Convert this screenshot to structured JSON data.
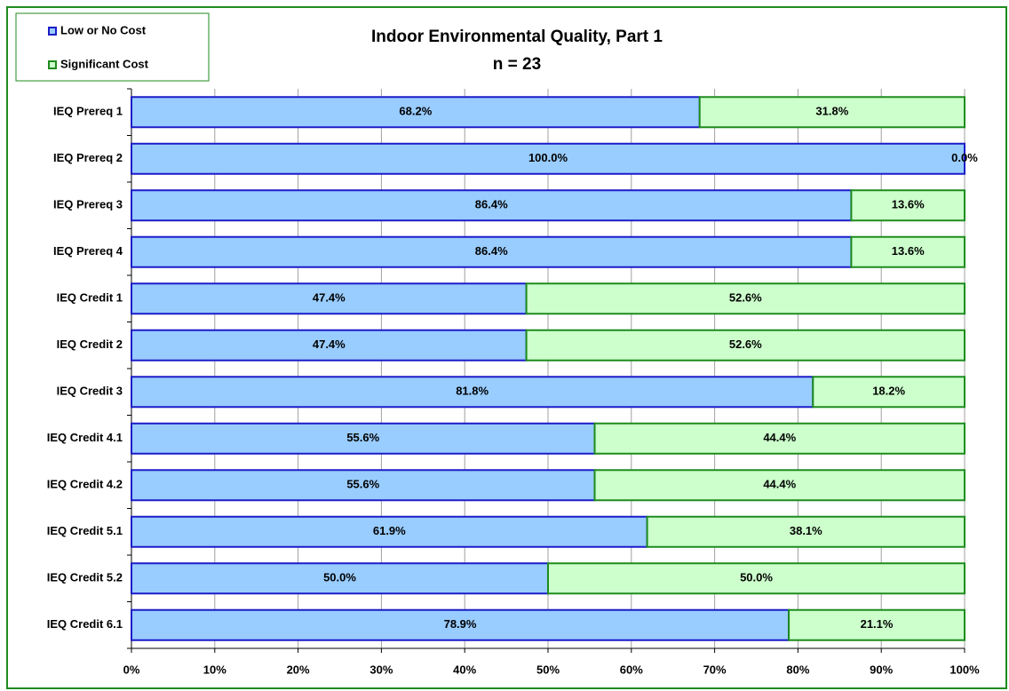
{
  "chart_data": {
    "type": "stacked_barh",
    "title": "Indoor Environmental Quality, Part 1",
    "subtitle": "n = 23",
    "categories": [
      "IEQ Prereq 1",
      "IEQ Prereq 2",
      "IEQ Prereq 3",
      "IEQ Prereq 4",
      "IEQ Credit 1",
      "IEQ Credit 2",
      "IEQ Credit 3",
      "IEQ Credit 4.1",
      "IEQ Credit 4.2",
      "IEQ Credit 5.1",
      "IEQ Credit 5.2",
      "IEQ Credit 6.1"
    ],
    "series": [
      {
        "name": "Low or No Cost",
        "color": "#99ccff",
        "edge_color": "#1c1cc8",
        "values": [
          68.2,
          100.0,
          86.4,
          86.4,
          47.4,
          47.4,
          81.8,
          55.6,
          55.6,
          61.9,
          50.0,
          78.9
        ],
        "value_labels": [
          "68.2%",
          "100.0%",
          "86.4%",
          "86.4%",
          "47.4%",
          "47.4%",
          "81.8%",
          "55.6%",
          "55.6%",
          "61.9%",
          "50.0%",
          "78.9%"
        ]
      },
      {
        "name": "Significant Cost",
        "color": "#ccffcc",
        "edge_color": "#1e8c1e",
        "values": [
          31.8,
          0.0,
          13.6,
          13.6,
          52.6,
          52.6,
          18.2,
          44.4,
          44.4,
          38.1,
          50.0,
          21.1
        ],
        "value_labels": [
          "31.8%",
          "0.0%",
          "13.6%",
          "13.6%",
          "52.6%",
          "52.6%",
          "18.2%",
          "44.4%",
          "44.4%",
          "38.1%",
          "50.0%",
          "21.1%"
        ]
      }
    ],
    "xlim": [
      0,
      100
    ],
    "xticks": [
      {
        "value": 0,
        "label": "0%"
      },
      {
        "value": 10,
        "label": "10%"
      },
      {
        "value": 20,
        "label": "20%"
      },
      {
        "value": 30,
        "label": "30%"
      },
      {
        "value": 40,
        "label": "40%"
      },
      {
        "value": 50,
        "label": "50%"
      },
      {
        "value": 60,
        "label": "60%"
      },
      {
        "value": 70,
        "label": "70%"
      },
      {
        "value": 80,
        "label": "80%"
      },
      {
        "value": 90,
        "label": "90%"
      },
      {
        "value": 100,
        "label": "100%"
      }
    ],
    "grid": true,
    "legend": "upper left"
  }
}
